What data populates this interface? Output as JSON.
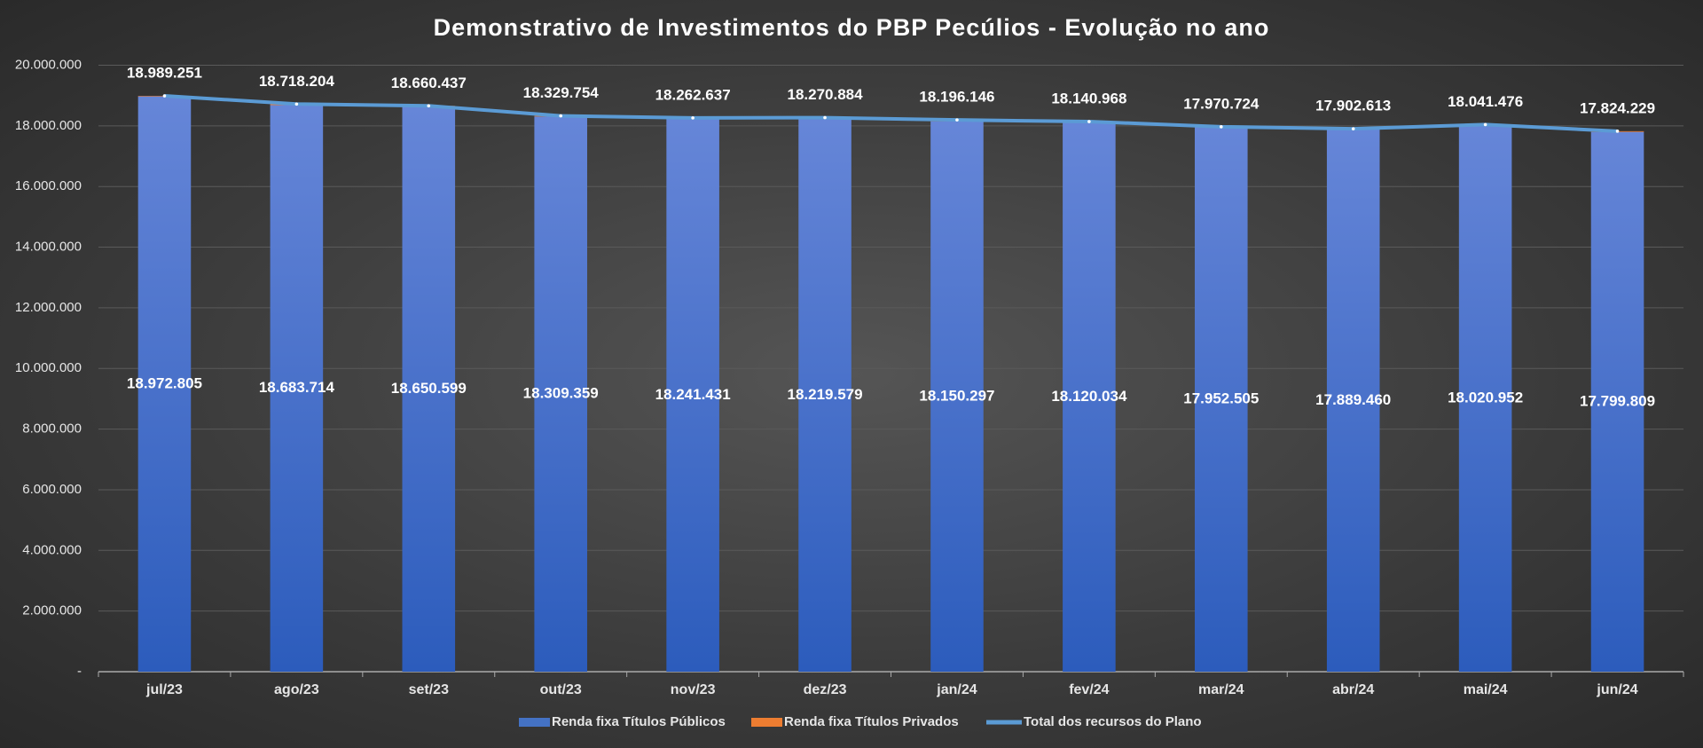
{
  "chart_data": {
    "type": "bar-line",
    "title": "Demonstrativo de Investimentos do PBP Pecúlios - Evolução no ano",
    "categories": [
      "jul/23",
      "ago/23",
      "set/23",
      "out/23",
      "nov/23",
      "dez/23",
      "jan/24",
      "fev/24",
      "mar/24",
      "abr/24",
      "mai/24",
      "jun/24"
    ],
    "series": [
      {
        "name": "Renda fixa Títulos Públicos",
        "color": "#4472c4",
        "kind": "bar",
        "values": [
          18972805,
          18683714,
          18650599,
          18309359,
          18241431,
          18219579,
          18150297,
          18120034,
          17952505,
          17889460,
          18020952,
          17799809
        ],
        "value_labels": [
          "18.972.805",
          "18.683.714",
          "18.650.599",
          "18.309.359",
          "18.241.431",
          "18.219.579",
          "18.150.297",
          "18.120.034",
          "17.952.505",
          "17.889.460",
          "18.020.952",
          "17.799.809"
        ]
      },
      {
        "name": "Renda fixa Títulos Privados",
        "color": "#ed7d31",
        "kind": "bar",
        "values": [
          16446,
          34490,
          9838,
          20395,
          21206,
          51305,
          45849,
          20934,
          18219,
          13153,
          20524,
          24420
        ]
      },
      {
        "name": "Total dos recursos do Plano",
        "color": "#5b9bd5",
        "kind": "line",
        "values": [
          18989251,
          18718204,
          18660437,
          18329754,
          18262637,
          18270884,
          18196146,
          18140968,
          17970724,
          17902613,
          18041476,
          17824229
        ],
        "value_labels": [
          "18.989.251",
          "18.718.204",
          "18.660.437",
          "18.329.754",
          "18.262.637",
          "18.270.884",
          "18.196.146",
          "18.140.968",
          "17.970.724",
          "17.902.613",
          "18.041.476",
          "17.824.229"
        ]
      }
    ],
    "ylim": [
      0,
      20000000
    ],
    "yticks": [
      {
        "value": 0,
        "label": "-"
      },
      {
        "value": 2000000,
        "label": "2.000.000"
      },
      {
        "value": 4000000,
        "label": "4.000.000"
      },
      {
        "value": 6000000,
        "label": "6.000.000"
      },
      {
        "value": 8000000,
        "label": "8.000.000"
      },
      {
        "value": 10000000,
        "label": "10.000.000"
      },
      {
        "value": 12000000,
        "label": "12.000.000"
      },
      {
        "value": 14000000,
        "label": "14.000.000"
      },
      {
        "value": 16000000,
        "label": "16.000.000"
      },
      {
        "value": 18000000,
        "label": "18.000.000"
      },
      {
        "value": 20000000,
        "label": "20.000.000"
      }
    ],
    "grid": true,
    "legend": "bottom"
  }
}
